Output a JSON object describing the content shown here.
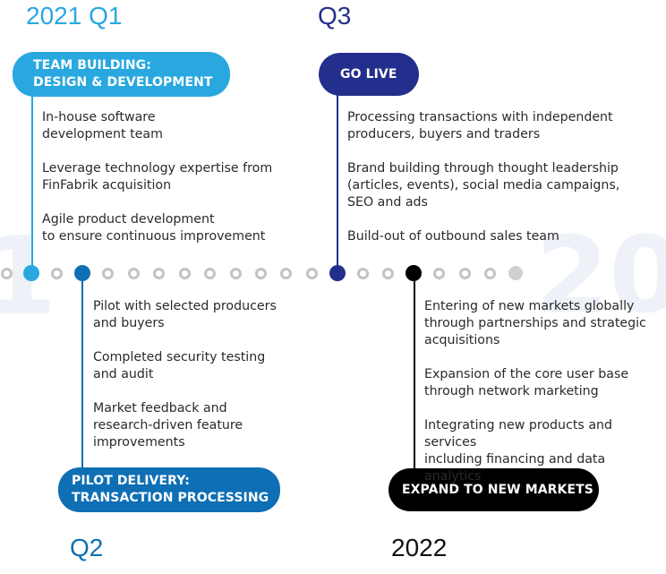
{
  "colors": {
    "q1": "#29a8e0",
    "q2": "#0e6fb5",
    "q3": "#232f8c",
    "y2022": "#000000",
    "dot_inactive": "#c3c3c3",
    "dot_future": "#d0d0d0"
  },
  "timeline": {
    "dot_count": 21,
    "milestones": [
      {
        "period": "2021 Q1",
        "title_lines": [
          "TEAM BUILDING:",
          "DESIGN & DEVELOPMENT"
        ],
        "items": [
          "In-house software\ndevelopment team",
          "Leverage technology expertise from\nFinFabrik acquisition",
          "Agile product development\nto ensure continuous improvement"
        ]
      },
      {
        "period": "Q2",
        "title_lines": [
          "PILOT DELIVERY:",
          "TRANSACTION PROCESSING"
        ],
        "items": [
          "Pilot with selected producers\nand buyers",
          "Completed security testing\nand audit",
          "Market feedback and\nresearch-driven feature\nimprovements"
        ]
      },
      {
        "period": "Q3",
        "title_lines": [
          "GO LIVE"
        ],
        "items": [
          "Processing transactions with independent\nproducers, buyers and traders",
          "Brand building through thought leadership\n(articles, events), social media campaigns,\nSEO and ads",
          "Build-out of outbound sales team"
        ]
      },
      {
        "period": "2022",
        "title_lines": [
          "EXPAND TO NEW MARKETS"
        ],
        "items": [
          "Entering of new markets globally\nthrough partnerships and strategic\nacquisitions",
          "Expansion of the core user base\nthrough network marketing",
          "Integrating new products and services\nincluding financing and data analytics"
        ]
      }
    ]
  }
}
